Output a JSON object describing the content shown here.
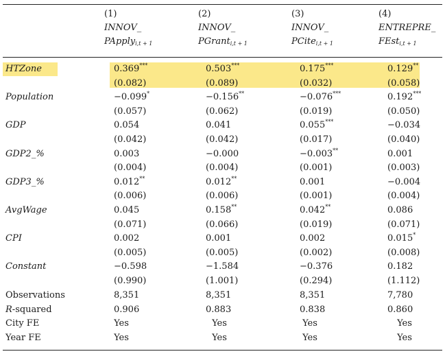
{
  "header": {
    "columns": [
      {
        "num": "(1)",
        "line1": "INNOV_",
        "line2": "PApply",
        "sub": "i,t + 1"
      },
      {
        "num": "(2)",
        "line1": "INNOV_",
        "line2": "PGrant",
        "sub": "i,t + 1"
      },
      {
        "num": "(3)",
        "line1": "INNOV_",
        "line2": "PCite",
        "sub": "i,t + 1"
      },
      {
        "num": "(4)",
        "line1": "ENTREPRE_",
        "line2": "FEst",
        "sub": "i,t + 1"
      }
    ]
  },
  "rows": [
    {
      "label": "HTZone",
      "italic": true,
      "highlight": true,
      "coef": [
        {
          "v": "0.369",
          "s": "***"
        },
        {
          "v": "0.503",
          "s": "***"
        },
        {
          "v": "0.175",
          "s": "***"
        },
        {
          "v": "0.129",
          "s": "**"
        }
      ],
      "se": [
        "(0.082)",
        "(0.089)",
        "(0.032)",
        "(0.058)"
      ]
    },
    {
      "label": "Population",
      "italic": true,
      "coef": [
        {
          "v": "−0.099",
          "s": "*"
        },
        {
          "v": "−0.156",
          "s": "**"
        },
        {
          "v": "−0.076",
          "s": "***"
        },
        {
          "v": "0.192",
          "s": "***"
        }
      ],
      "se": [
        "(0.057)",
        "(0.062)",
        "(0.019)",
        "(0.050)"
      ]
    },
    {
      "label": "GDP",
      "italic": true,
      "coef": [
        {
          "v": "0.054",
          "s": ""
        },
        {
          "v": "0.041",
          "s": ""
        },
        {
          "v": "0.055",
          "s": "***"
        },
        {
          "v": "−0.034",
          "s": ""
        }
      ],
      "se": [
        "(0.042)",
        "(0.042)",
        "(0.017)",
        "(0.040)"
      ]
    },
    {
      "label": "GDP2_%",
      "italic": true,
      "coef": [
        {
          "v": "0.003",
          "s": ""
        },
        {
          "v": "−0.000",
          "s": ""
        },
        {
          "v": "−0.003",
          "s": "**"
        },
        {
          "v": "0.001",
          "s": ""
        }
      ],
      "se": [
        "(0.004)",
        "(0.004)",
        "(0.001)",
        "(0.003)"
      ]
    },
    {
      "label": "GDP3_%",
      "italic": true,
      "coef": [
        {
          "v": "0.012",
          "s": "**"
        },
        {
          "v": "0.012",
          "s": "**"
        },
        {
          "v": "0.001",
          "s": ""
        },
        {
          "v": "−0.004",
          "s": ""
        }
      ],
      "se": [
        "(0.006)",
        "(0.006)",
        "(0.001)",
        "(0.004)"
      ]
    },
    {
      "label": "AvgWage",
      "italic": true,
      "coef": [
        {
          "v": "0.045",
          "s": ""
        },
        {
          "v": "0.158",
          "s": "**"
        },
        {
          "v": "0.042",
          "s": "**"
        },
        {
          "v": "0.086",
          "s": ""
        }
      ],
      "se": [
        "(0.071)",
        "(0.066)",
        "(0.019)",
        "(0.071)"
      ]
    },
    {
      "label": "CPI",
      "italic": true,
      "coef": [
        {
          "v": "0.002",
          "s": ""
        },
        {
          "v": "0.001",
          "s": ""
        },
        {
          "v": "0.002",
          "s": ""
        },
        {
          "v": "0.015",
          "s": "*"
        }
      ],
      "se": [
        "(0.005)",
        "(0.005)",
        "(0.002)",
        "(0.008)"
      ]
    },
    {
      "label": "Constant",
      "italic": true,
      "coef": [
        {
          "v": "−0.598",
          "s": ""
        },
        {
          "v": "−1.584",
          "s": ""
        },
        {
          "v": "−0.376",
          "s": ""
        },
        {
          "v": "0.182",
          "s": ""
        }
      ],
      "se": [
        "(0.990)",
        "(1.001)",
        "(0.294)",
        "(1.112)"
      ]
    }
  ],
  "footer": [
    {
      "label": "Observations",
      "italic": false,
      "values": [
        "8,351",
        "8,351",
        "8,351",
        "7,780"
      ],
      "align": "left"
    },
    {
      "label": "R-squared",
      "italic": false,
      "italicPrefix": "R",
      "values": [
        "0.906",
        "0.883",
        "0.838",
        "0.860"
      ],
      "align": "left"
    },
    {
      "label": "City FE",
      "italic": false,
      "values": [
        "Yes",
        "Yes",
        "Yes",
        "Yes"
      ],
      "align": "center"
    },
    {
      "label": "Year FE",
      "italic": false,
      "values": [
        "Yes",
        "Yes",
        "Yes",
        "Yes"
      ],
      "align": "center"
    }
  ],
  "colors": {
    "highlight": "#fbe88a",
    "rule": "#222222"
  }
}
